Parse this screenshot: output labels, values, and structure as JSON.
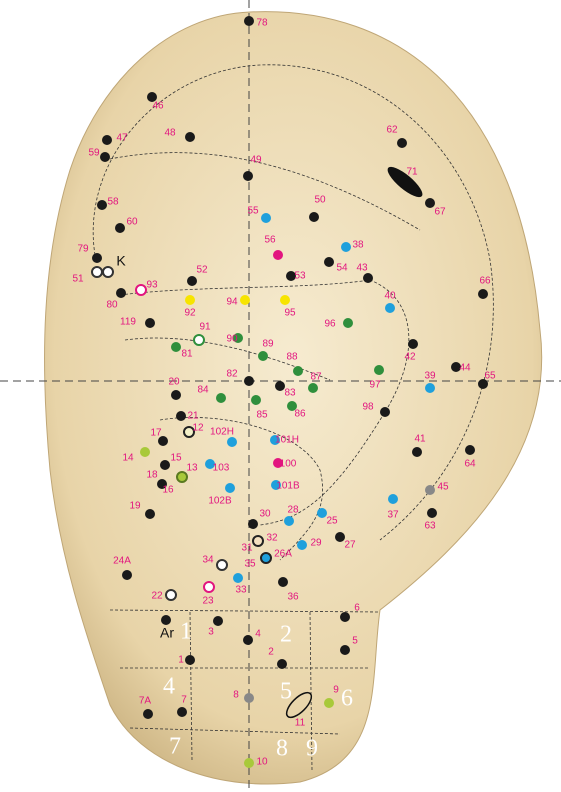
{
  "points": [
    {
      "label": "78",
      "color": "#1a1a1a"
    },
    {
      "label": "46",
      "color": "#1a1a1a"
    },
    {
      "label": "48",
      "color": "#1a1a1a"
    },
    {
      "label": "47",
      "color": "#1a1a1a"
    },
    {
      "label": "59",
      "color": "#1a1a1a"
    },
    {
      "label": "62",
      "color": "#1a1a1a"
    },
    {
      "label": "71"
    },
    {
      "label": "49",
      "color": "#1a1a1a"
    },
    {
      "label": "67",
      "color": "#1a1a1a"
    },
    {
      "label": "58",
      "color": "#1a1a1a"
    },
    {
      "label": "60",
      "color": "#1a1a1a"
    },
    {
      "label": "50",
      "color": "#1a1a1a"
    },
    {
      "label": "55",
      "color": "#1fa0dc"
    },
    {
      "label": "56",
      "color": "#e2157f"
    },
    {
      "label": "38",
      "color": "#1fa0dc"
    },
    {
      "label": "54",
      "color": "#1a1a1a"
    },
    {
      "label": "43",
      "color": "#1a1a1a"
    },
    {
      "label": "79",
      "color": "#1a1a1a"
    },
    {
      "label": "51",
      "color": "#ffffff"
    },
    {
      "label": "52",
      "color": "#1a1a1a"
    },
    {
      "label": "53",
      "color": "#1a1a1a"
    },
    {
      "label": "66",
      "color": "#1a1a1a"
    },
    {
      "label": "93",
      "color": "#ffffff"
    },
    {
      "label": "80",
      "color": "#1a1a1a"
    },
    {
      "label": "40",
      "color": "#1fa0dc"
    },
    {
      "label": "92",
      "color": "#f7e400"
    },
    {
      "label": "94",
      "color": "#f7e400"
    },
    {
      "label": "95",
      "color": "#f7e400"
    },
    {
      "label": "119",
      "color": "#1a1a1a"
    },
    {
      "label": "96",
      "color": "#2f8f3c"
    },
    {
      "label": "91",
      "color": "#ffffff"
    },
    {
      "label": "90",
      "color": "#2f8f3c"
    },
    {
      "label": "89",
      "color": "#2f8f3c"
    },
    {
      "label": "81",
      "color": "#2f8f3c"
    },
    {
      "label": "88",
      "color": "#2f8f3c"
    },
    {
      "label": "42",
      "color": "#1a1a1a"
    },
    {
      "label": "44",
      "color": "#1a1a1a"
    },
    {
      "label": "65",
      "color": "#1a1a1a"
    },
    {
      "label": "82",
      "color": "#1a1a1a"
    },
    {
      "label": "87",
      "color": "#2f8f3c"
    },
    {
      "label": "97",
      "color": "#2f8f3c"
    },
    {
      "label": "39",
      "color": "#1fa0dc"
    },
    {
      "label": "20",
      "color": "#1a1a1a"
    },
    {
      "label": "84",
      "color": "#2f8f3c"
    },
    {
      "label": "83",
      "color": "#1a1a1a"
    },
    {
      "label": "85",
      "color": "#2f8f3c"
    },
    {
      "label": "86",
      "color": "#2f8f3c"
    },
    {
      "label": "98",
      "color": "#1a1a1a"
    },
    {
      "label": "21",
      "color": "#1a1a1a"
    },
    {
      "label": "12",
      "color": "#f3f0c8"
    },
    {
      "label": "17",
      "color": "#1a1a1a"
    },
    {
      "label": "102H",
      "color": "#1fa0dc"
    },
    {
      "label": "101H",
      "color": "#1fa0dc"
    },
    {
      "label": "41",
      "color": "#1a1a1a"
    },
    {
      "label": "14",
      "color": "#a8c93a"
    },
    {
      "label": "15",
      "color": "#1a1a1a"
    },
    {
      "label": "103",
      "color": "#1fa0dc"
    },
    {
      "label": "100",
      "color": "#e2157f"
    },
    {
      "label": "64",
      "color": "#1a1a1a"
    },
    {
      "label": "18",
      "color": "#1a1a1a"
    },
    {
      "label": "13",
      "color": "#a8c93a"
    },
    {
      "label": "16"
    },
    {
      "label": "102B",
      "color": "#1fa0dc"
    },
    {
      "label": "101B",
      "color": "#1fa0dc"
    },
    {
      "label": "45",
      "color": "#888888"
    },
    {
      "label": "19",
      "color": "#1a1a1a"
    },
    {
      "label": "37",
      "color": "#1fa0dc"
    },
    {
      "label": "63",
      "color": "#1a1a1a"
    },
    {
      "label": "28",
      "color": "#1fa0dc"
    },
    {
      "label": "25",
      "color": "#1fa0dc"
    },
    {
      "label": "30",
      "color": "#1a1a1a"
    },
    {
      "label": "27",
      "color": "#1a1a1a"
    },
    {
      "label": "32",
      "color": "#f3e0c0"
    },
    {
      "label": "29",
      "color": "#1fa0dc"
    },
    {
      "label": "31"
    },
    {
      "label": "26A",
      "color": "#1fa0dc"
    },
    {
      "label": "24A",
      "color": "#1a1a1a"
    },
    {
      "label": "34",
      "color": "#ffffff"
    },
    {
      "label": "35",
      "color": "#1fa0dc"
    },
    {
      "label": "36",
      "color": "#1a1a1a"
    },
    {
      "label": "22",
      "color": "#ffffff"
    },
    {
      "label": "23",
      "color": "#ffffff"
    },
    {
      "label": "33"
    },
    {
      "label": "6",
      "color": "#1a1a1a"
    },
    {
      "label": "3",
      "color": "#1a1a1a"
    },
    {
      "label": "4",
      "color": "#1a1a1a"
    },
    {
      "label": "5",
      "color": "#1a1a1a"
    },
    {
      "label": "1",
      "color": "#1a1a1a"
    },
    {
      "label": "2",
      "color": "#1a1a1a"
    },
    {
      "label": "8",
      "color": "#888888"
    },
    {
      "label": "9",
      "color": "#a8c93a"
    },
    {
      "label": "11"
    },
    {
      "label": "7A",
      "color": "#1a1a1a"
    },
    {
      "label": "7",
      "color": "#1a1a1a"
    },
    {
      "label": "10",
      "color": "#a8c93a"
    }
  ],
  "markers": [
    {
      "label": "K"
    },
    {
      "label": "Ar"
    }
  ],
  "zones": [
    "1",
    "2",
    "3",
    "4",
    "5",
    "6",
    "7",
    "8",
    "9"
  ]
}
